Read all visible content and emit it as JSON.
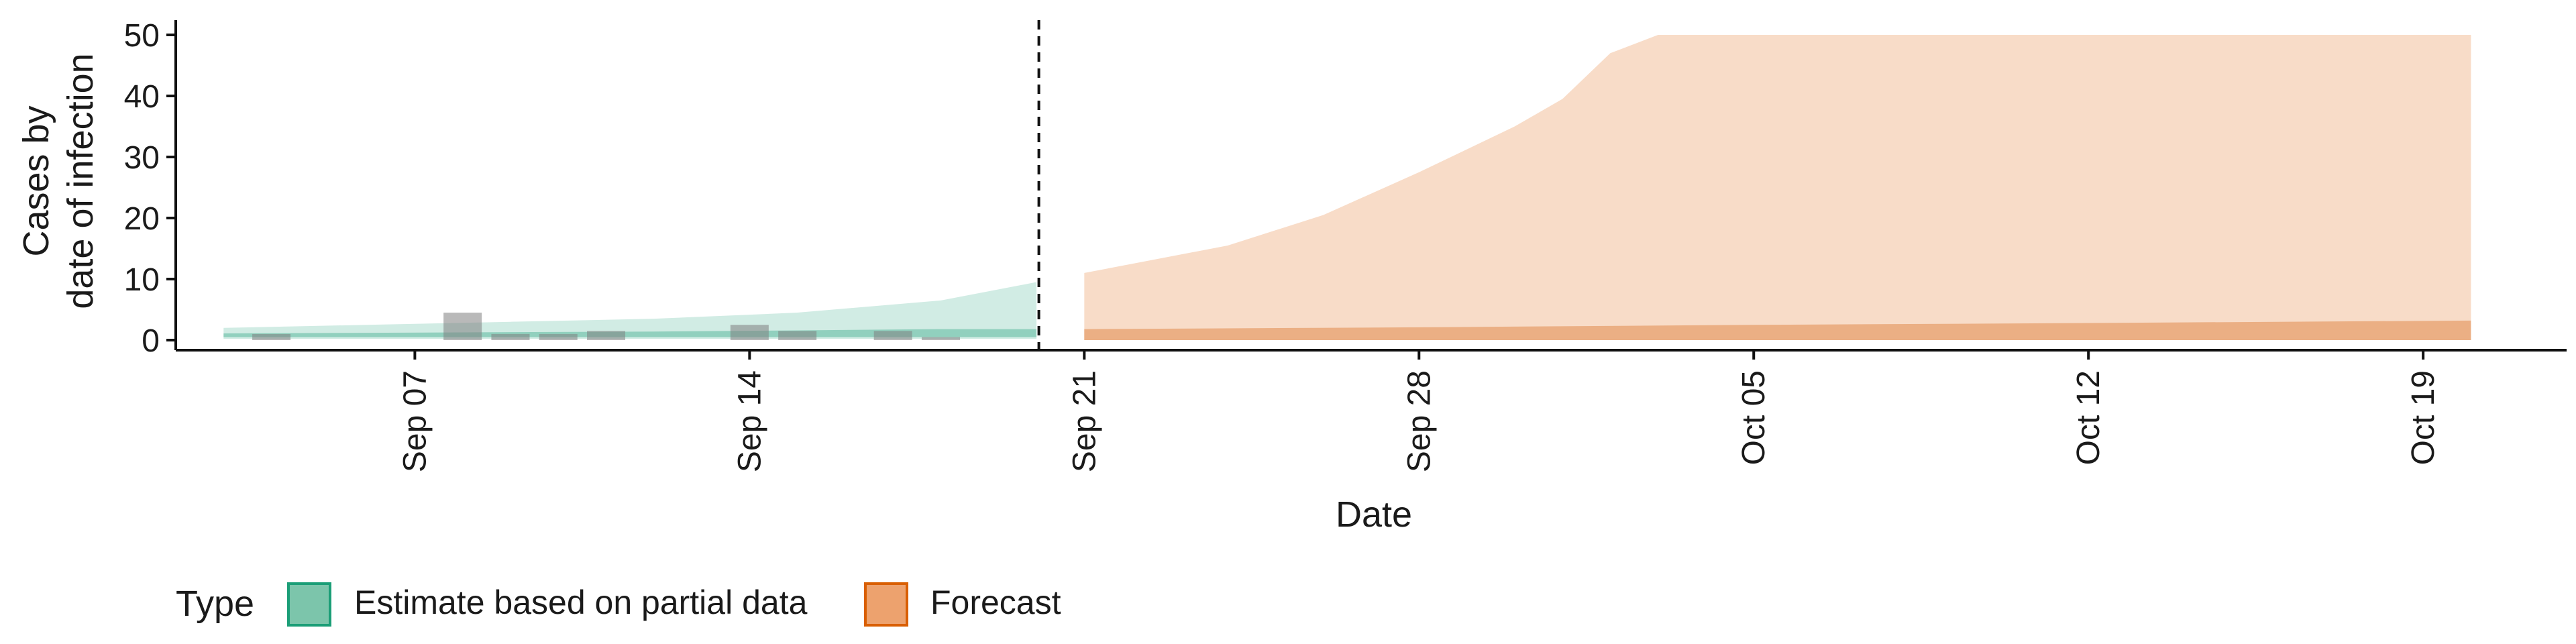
{
  "chart_data": {
    "type": "area",
    "xlabel": "Date",
    "ylabel_lines": [
      "Cases by",
      "date of infection"
    ],
    "ylim": [
      0,
      50
    ],
    "y_ticks": [
      0,
      10,
      20,
      30,
      40,
      50
    ],
    "x_range": [
      "2020-09-02",
      "2020-10-22"
    ],
    "x_ticks": [
      {
        "date": "2020-09-07",
        "label": "Sep 07"
      },
      {
        "date": "2020-09-14",
        "label": "Sep 14"
      },
      {
        "date": "2020-09-21",
        "label": "Sep 21"
      },
      {
        "date": "2020-09-28",
        "label": "Sep 28"
      },
      {
        "date": "2020-10-05",
        "label": "Oct 05"
      },
      {
        "date": "2020-10-12",
        "label": "Oct 12"
      },
      {
        "date": "2020-10-19",
        "label": "Oct 19"
      }
    ],
    "forecast_start": "2020-09-20",
    "series": [
      {
        "name": "Estimate based on partial data",
        "color": "#1b9e77",
        "outer": {
          "x": [
            "2020-09-03",
            "2020-09-06",
            "2020-09-09",
            "2020-09-12",
            "2020-09-15",
            "2020-09-18",
            "2020-09-20"
          ],
          "lower": [
            0.2,
            0.2,
            0.2,
            0.2,
            0.2,
            0.2,
            0.2
          ],
          "upper": [
            2,
            2.5,
            3,
            3.5,
            4.5,
            6.5,
            9.5
          ]
        },
        "inner": {
          "x": [
            "2020-09-03",
            "2020-09-06",
            "2020-09-09",
            "2020-09-12",
            "2020-09-15",
            "2020-09-18",
            "2020-09-20"
          ],
          "lower": [
            0.5,
            0.5,
            0.5,
            0.5,
            0.5,
            0.5,
            0.5
          ],
          "upper": [
            1.1,
            1.2,
            1.3,
            1.4,
            1.6,
            1.8,
            1.8
          ]
        }
      },
      {
        "name": "Forecast",
        "color": "#d95f02",
        "outer": {
          "x": [
            "2020-09-21",
            "2020-09-22",
            "2020-09-24",
            "2020-09-26",
            "2020-09-28",
            "2020-09-30",
            "2020-10-01",
            "2020-10-02",
            "2020-10-03",
            "2020-10-20"
          ],
          "lower": [
            0,
            0,
            0,
            0,
            0,
            0,
            0,
            0,
            0,
            0
          ],
          "upper": [
            11,
            12.5,
            15.5,
            20.5,
            27.5,
            35,
            39.5,
            47,
            50,
            50
          ]
        },
        "inner": {
          "x": [
            "2020-09-21",
            "2020-09-28",
            "2020-10-05",
            "2020-10-12",
            "2020-10-20"
          ],
          "lower": [
            0,
            0,
            0,
            0,
            0
          ],
          "upper": [
            1.8,
            2.1,
            2.5,
            2.8,
            3.2
          ]
        }
      }
    ],
    "observed_bars": {
      "x": [
        "2020-09-04",
        "2020-09-08",
        "2020-09-09",
        "2020-09-10",
        "2020-09-11",
        "2020-09-14",
        "2020-09-15",
        "2020-09-17",
        "2020-09-18"
      ],
      "values": [
        1,
        4.5,
        1,
        1,
        1.5,
        2.5,
        1.5,
        1.5,
        0.5
      ]
    },
    "legend": {
      "title": "Type",
      "position": "bottom-left",
      "entries": [
        {
          "label": "Estimate based on partial data",
          "fill": "#7cc5ab",
          "stroke": "#1b9e77"
        },
        {
          "label": "Forecast",
          "fill": "#eda26e",
          "stroke": "#d95f02"
        }
      ]
    }
  }
}
